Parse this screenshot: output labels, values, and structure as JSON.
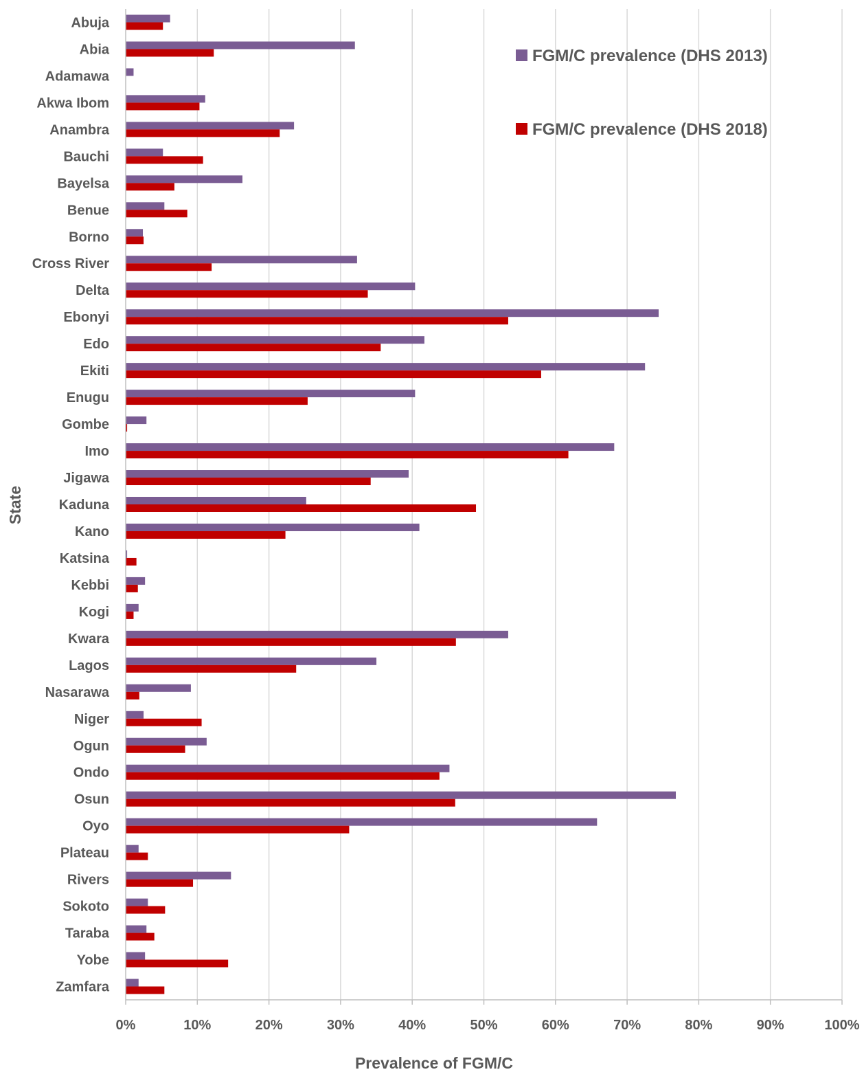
{
  "chart_data": {
    "type": "bar",
    "orientation": "horizontal",
    "categories": [
      "Abuja",
      "Abia",
      "Adamawa",
      "Akwa Ibom",
      "Anambra",
      "Bauchi",
      "Bayelsa",
      "Benue",
      "Borno",
      "Cross River",
      "Delta",
      "Ebonyi",
      "Edo",
      "Ekiti",
      "Enugu",
      "Gombe",
      "Imo",
      "Jigawa",
      "Kaduna",
      "Kano",
      "Katsina",
      "Kebbi",
      "Kogi",
      "Kwara",
      "Lagos",
      "Nasarawa",
      "Niger",
      "Ogun",
      "Ondo",
      "Osun",
      "Oyo",
      "Plateau",
      "Rivers",
      "Sokoto",
      "Taraba",
      "Yobe",
      "Zamfara"
    ],
    "series": [
      {
        "name": "FGM/C prevalence (DHS 2013)",
        "color": "#7A5C93",
        "values": [
          6.2,
          32.0,
          1.1,
          11.1,
          23.5,
          5.2,
          16.3,
          5.4,
          2.4,
          32.3,
          40.4,
          74.4,
          41.7,
          72.5,
          40.4,
          2.9,
          68.2,
          39.5,
          25.2,
          41.0,
          0.2,
          2.7,
          1.8,
          53.4,
          35.0,
          9.1,
          2.5,
          11.3,
          45.2,
          76.8,
          65.8,
          1.8,
          14.7,
          3.1,
          2.9,
          2.7,
          1.8
        ]
      },
      {
        "name": "FGM/C prevalence (DHS 2018)",
        "color": "#C00000",
        "values": [
          5.2,
          12.3,
          0,
          10.3,
          21.5,
          10.8,
          6.8,
          8.6,
          2.5,
          12.0,
          33.8,
          53.4,
          35.6,
          58.0,
          25.4,
          0.2,
          61.8,
          34.2,
          48.9,
          22.3,
          1.5,
          1.7,
          1.1,
          46.1,
          23.8,
          1.9,
          10.6,
          8.3,
          43.8,
          46.0,
          31.2,
          3.1,
          9.4,
          5.5,
          4.0,
          14.3,
          5.4
        ]
      }
    ],
    "xlabel": "Prevalence of FGM/C",
    "ylabel": "State",
    "xlim": [
      0,
      100
    ],
    "x_ticks": [
      0,
      10,
      20,
      30,
      40,
      50,
      60,
      70,
      80,
      90,
      100
    ],
    "tick_suffix": "%",
    "grid": true,
    "legend_position": "top-right"
  }
}
